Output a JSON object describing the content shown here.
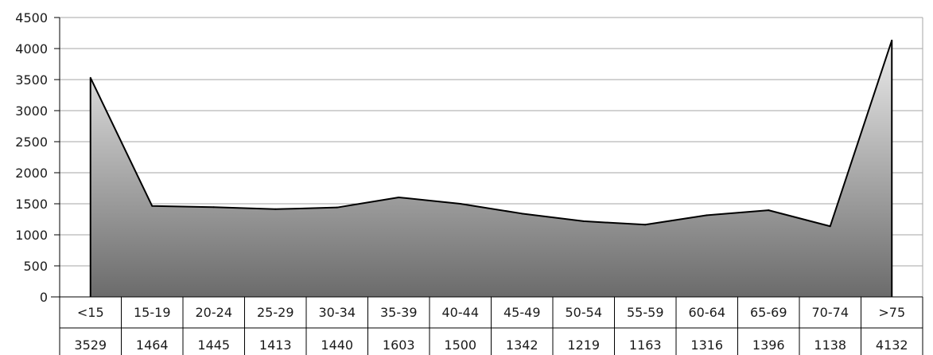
{
  "chart_data": {
    "type": "area",
    "categories": [
      "<15",
      "15-19",
      "20-24",
      "25-29",
      "30-34",
      "35-39",
      "40-44",
      "45-49",
      "50-54",
      "55-59",
      "60-64",
      "65-69",
      "70-74",
      ">75"
    ],
    "values": [
      3529,
      1464,
      1445,
      1413,
      1440,
      1603,
      1500,
      1342,
      1219,
      1163,
      1316,
      1396,
      1138,
      4132
    ],
    "value_labels": [
      "3529",
      "1464",
      "1445",
      "1413",
      "1440",
      "1603",
      "1500",
      "1342",
      "1219",
      "1163",
      "1316",
      "1396",
      "1138",
      "4132"
    ],
    "y_ticks": [
      0,
      500,
      1000,
      1500,
      2000,
      2500,
      3000,
      3500,
      4000,
      4500
    ],
    "ylim": [
      0,
      4500
    ],
    "grid": true,
    "legend": "none",
    "data_table": "below"
  },
  "colors": {
    "gridline": "#a6a6a6",
    "axis": "#000000",
    "series_line": "#000000",
    "area_fill_top": "#ececec",
    "area_fill_bottom": "#6b6b6b"
  }
}
